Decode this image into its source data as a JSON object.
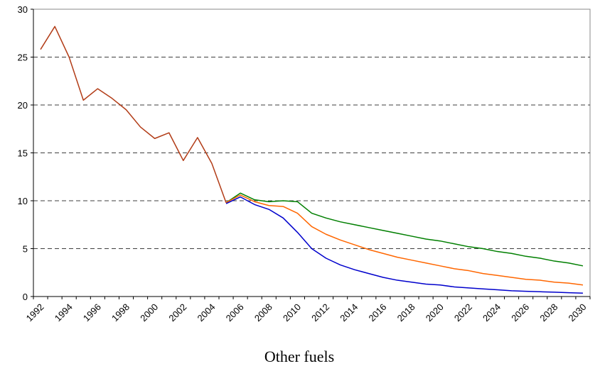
{
  "chart_data": {
    "type": "line",
    "title": "Other fuels",
    "categories": [
      "1992",
      null,
      "1994",
      null,
      "1996",
      null,
      "1998",
      null,
      "2000",
      null,
      "2002",
      null,
      "2004",
      null,
      "2006",
      null,
      "2008",
      null,
      "2010",
      null,
      "2012",
      null,
      "2014",
      null,
      "2016",
      null,
      "2018",
      null,
      "2020",
      null,
      "2022",
      null,
      "2024",
      null,
      "2026",
      null,
      "2028",
      null,
      "2030"
    ],
    "series": [
      {
        "color": "#007f00",
        "values": [
          null,
          null,
          null,
          null,
          null,
          null,
          null,
          null,
          null,
          null,
          null,
          null,
          null,
          9.8,
          10.8,
          10.1,
          9.9,
          10.0,
          9.9,
          8.7,
          8.2,
          7.8,
          7.5,
          7.2,
          6.9,
          6.6,
          6.3,
          6.0,
          5.8,
          5.5,
          5.2,
          5.0,
          4.7,
          4.5,
          4.2,
          4.0,
          3.7,
          3.5,
          3.2
        ]
      },
      {
        "color": "#ff6600",
        "values": [
          null,
          null,
          null,
          null,
          null,
          null,
          null,
          null,
          null,
          null,
          null,
          null,
          null,
          9.8,
          10.6,
          9.9,
          9.5,
          9.4,
          8.7,
          7.3,
          6.5,
          5.9,
          5.4,
          4.9,
          4.5,
          4.1,
          3.8,
          3.5,
          3.2,
          2.9,
          2.7,
          2.4,
          2.2,
          2.0,
          1.8,
          1.7,
          1.5,
          1.4,
          1.2
        ]
      },
      {
        "color": "#0000cc",
        "values": [
          null,
          null,
          null,
          null,
          null,
          null,
          null,
          null,
          null,
          null,
          null,
          null,
          null,
          9.7,
          10.4,
          9.6,
          9.1,
          8.2,
          6.7,
          5.0,
          4.0,
          3.3,
          2.8,
          2.4,
          2.0,
          1.7,
          1.5,
          1.3,
          1.2,
          1.0,
          0.9,
          0.8,
          0.7,
          0.6,
          0.55,
          0.5,
          0.45,
          0.4,
          0.35
        ]
      },
      {
        "color": "#b23c17",
        "values": [
          25.8,
          28.2,
          25.0,
          20.5,
          21.7,
          20.7,
          19.5,
          17.7,
          16.5,
          17.1,
          14.2,
          16.6,
          13.9,
          9.8,
          null,
          null,
          null,
          null,
          null,
          null,
          null,
          null,
          null,
          null,
          null,
          null,
          null,
          null,
          null,
          null,
          null,
          null,
          null,
          null,
          null,
          null,
          null,
          null,
          null
        ]
      }
    ],
    "ylim": [
      0,
      30
    ],
    "yticks": [
      0,
      5,
      10,
      15,
      20,
      25,
      30
    ],
    "grid": true
  }
}
